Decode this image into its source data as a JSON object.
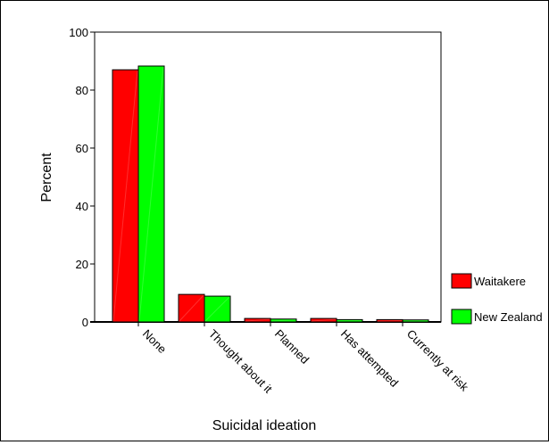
{
  "chart_data": {
    "type": "bar",
    "title": "",
    "xlabel": "Suicidal ideation",
    "ylabel": "Percent",
    "categories": [
      "None",
      "Thought about it",
      "Planned",
      "Has attempted",
      "Currently at risk"
    ],
    "series": [
      {
        "name": "Waitakere",
        "values": [
          87.0,
          9.5,
          1.2,
          1.2,
          0.8
        ],
        "color": "#ff0000"
      },
      {
        "name": "New Zealand",
        "values": [
          88.3,
          8.9,
          1.0,
          0.8,
          0.7
        ],
        "color": "#00ff00"
      }
    ],
    "ylim": [
      0,
      100
    ],
    "yticks": [
      "0",
      "20",
      "40",
      "60",
      "80",
      "100"
    ],
    "grid": false,
    "legend_position": "right"
  }
}
